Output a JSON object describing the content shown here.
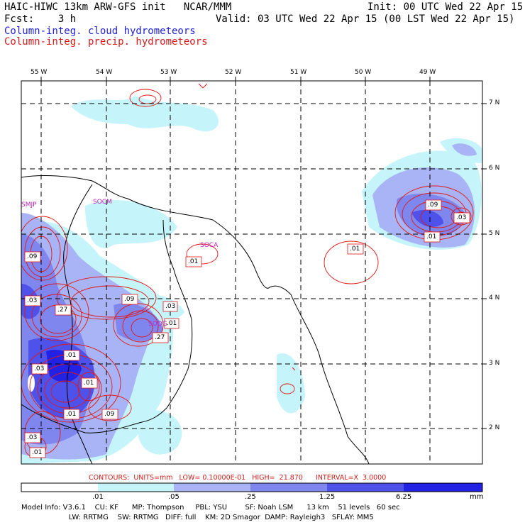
{
  "header": {
    "title": "HAIC-HIWC 13km ARW-GFS init   NCAR/MMM",
    "fcst": "Fcst:    3 h",
    "init": "Init: 00 UTC Wed 22 Apr 15",
    "valid": "Valid: 03 UTC Wed 22 Apr 15 (00 LST Wed 22 Apr 15)",
    "legend_blue": "Column-integ. cloud hydrometeors",
    "legend_red": "Column-integ. precip. hydrometeors"
  },
  "axes": {
    "lon_labels": [
      "55 W",
      "54 W",
      "53 W",
      "52 W",
      "51 W",
      "50 W",
      "49 W"
    ],
    "lat_labels": [
      "7 N",
      "6 N",
      "5 N",
      "4 N",
      "3 N",
      "2 N"
    ]
  },
  "place_labels": [
    "SMJP",
    "SOCM",
    "SOCA",
    "SOOG"
  ],
  "contour_labels": [
    ".09",
    ".03",
    ".01",
    ".01",
    ".09",
    ".03",
    ".27",
    ".09",
    ".03",
    ".01",
    ".27",
    ".01",
    ".01",
    ".01",
    ".09",
    ".03",
    ".01",
    ".03",
    ".01"
  ],
  "contour_info": "CONTOURS:  UNITS=mm   LOW= 0.10000E-01   HIGH=  21.870      INTERVAL=X  3.0000",
  "colorbar": {
    "ticks": [
      ".01",
      ".05",
      ".25",
      "1.25",
      "6.25"
    ],
    "unit": "mm",
    "colors": [
      "#ffffff",
      "#c6f4fb",
      "#a8b4f5",
      "#7f86ee",
      "#4f52ea",
      "#2222e4"
    ]
  },
  "model_info": {
    "line1": "Model Info: V3.6.1    CU: KF      MP: Thompson     PBL: YSU        SF: Noah LSM      13 km    51 levels   60 sec",
    "line2": "                     LW: RRTMG    SW: RRTMG   DIFF: full    KM: 2D Smagor  DAMP: Rayleigh3   SFLAY: MM5"
  }
}
